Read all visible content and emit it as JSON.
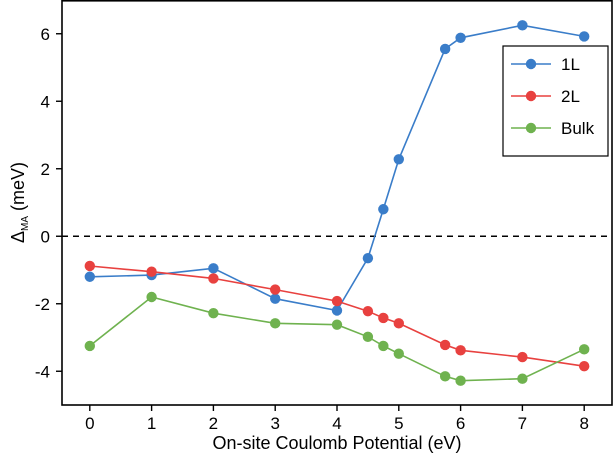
{
  "chart_data": {
    "type": "line",
    "xlabel": "On-site Coulomb Potential (eV)",
    "ylabel_main": "Δ",
    "ylabel_sub": "MA",
    "ylabel_unit": " (meV)",
    "xlim": [
      -0.45,
      8.45
    ],
    "ylim": [
      -5,
      7
    ],
    "xticks": [
      0,
      1,
      2,
      3,
      4,
      5,
      6,
      7,
      8
    ],
    "yticks": [
      -4,
      -2,
      0,
      2,
      4,
      6
    ],
    "reference_line": {
      "y": 0,
      "style": "dashed",
      "color": "#000000"
    },
    "legend_position": "top-right",
    "series": [
      {
        "name": "1L",
        "color": "#3a7dc9",
        "x": [
          0,
          1,
          2,
          3,
          4,
          4.5,
          4.75,
          5,
          5.75,
          6,
          7,
          8
        ],
        "y": [
          -1.2,
          -1.15,
          -0.95,
          -1.85,
          -2.2,
          -0.65,
          0.8,
          2.28,
          5.55,
          5.88,
          6.25,
          5.92
        ]
      },
      {
        "name": "2L",
        "color": "#e8413f",
        "x": [
          0,
          1,
          2,
          3,
          4,
          4.5,
          4.75,
          5,
          5.75,
          6,
          7,
          8
        ],
        "y": [
          -0.88,
          -1.05,
          -1.25,
          -1.58,
          -1.92,
          -2.22,
          -2.42,
          -2.58,
          -3.22,
          -3.38,
          -3.58,
          -3.85
        ]
      },
      {
        "name": "Bulk",
        "color": "#6fb24f",
        "x": [
          0,
          1,
          2,
          3,
          4,
          4.5,
          4.75,
          5,
          5.75,
          6,
          7,
          8
        ],
        "y": [
          -3.25,
          -1.8,
          -2.28,
          -2.58,
          -2.62,
          -2.98,
          -3.25,
          -3.48,
          -4.15,
          -4.28,
          -4.22,
          -3.35
        ]
      }
    ]
  }
}
